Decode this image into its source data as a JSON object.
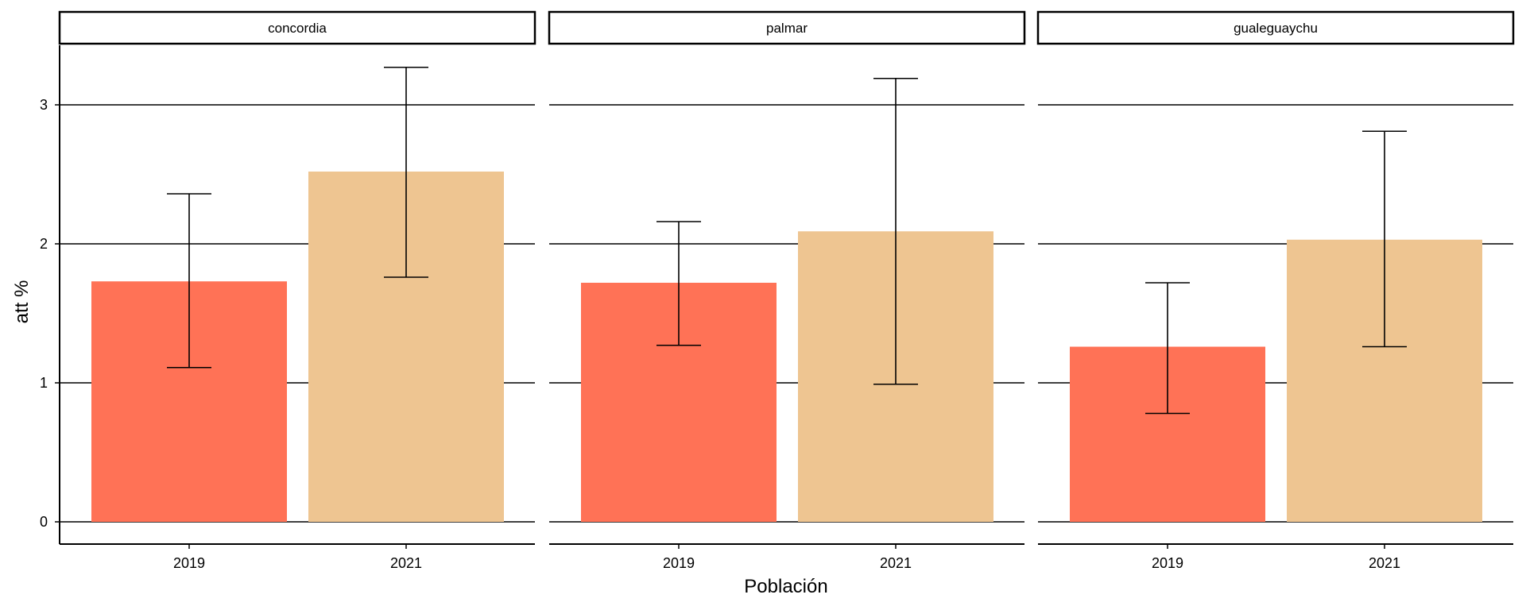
{
  "chart_data": {
    "type": "bar",
    "xlabel": "Población",
    "ylabel": "att %",
    "ylim": [
      -0.15,
      3.45
    ],
    "yticks": [
      0,
      1,
      2,
      3
    ],
    "grid": "horizontal major only",
    "categories": [
      "2019",
      "2021"
    ],
    "colors": {
      "2019": "#FF7256",
      "2021": "#EEC591"
    },
    "panels": [
      {
        "label": "concordia",
        "bars": [
          {
            "category": "2019",
            "value": 1.73,
            "error_low": 1.11,
            "error_high": 2.36
          },
          {
            "category": "2021",
            "value": 2.52,
            "error_low": 1.76,
            "error_high": 3.27
          }
        ]
      },
      {
        "label": "palmar",
        "bars": [
          {
            "category": "2019",
            "value": 1.72,
            "error_low": 1.27,
            "error_high": 2.16
          },
          {
            "category": "2021",
            "value": 2.09,
            "error_low": 0.99,
            "error_high": 3.19
          }
        ]
      },
      {
        "label": "gualeguaychu",
        "bars": [
          {
            "category": "2019",
            "value": 1.26,
            "error_low": 0.78,
            "error_high": 1.72
          },
          {
            "category": "2021",
            "value": 2.03,
            "error_low": 1.26,
            "error_high": 2.81
          }
        ]
      }
    ]
  }
}
